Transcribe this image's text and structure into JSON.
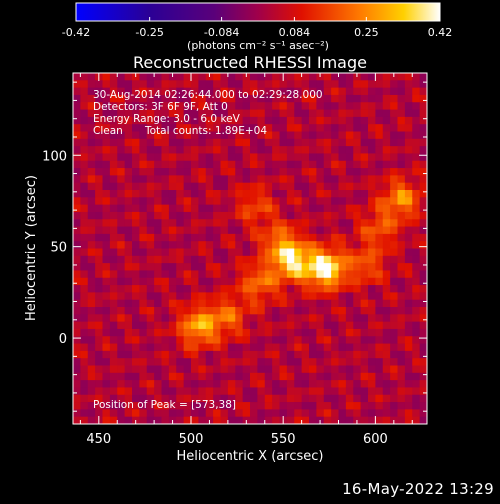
{
  "chart_data": {
    "type": "heatmap",
    "title": "Reconstructed RHESSI Image",
    "xlabel": "Heliocentric X (arcsec)",
    "ylabel": "Heliocentric Y (arcsec)",
    "xlim": [
      436,
      628
    ],
    "ylim": [
      -47,
      145
    ],
    "x_ticks": [
      450,
      500,
      550,
      600
    ],
    "y_ticks": [
      0,
      50,
      100
    ],
    "colorbar": {
      "label": "(photons cm⁻² s⁻¹ asec⁻²)",
      "range": [
        -0.42,
        0.42
      ],
      "ticks": [
        "-0.42",
        "-0.25",
        "-0.084",
        "0.084",
        "0.25",
        "0.42"
      ]
    },
    "annotations": {
      "time_range": "30-Aug-2014 02:26:44.000 to 02:29:28.000",
      "detectors": "Detectors: 3F 6F 9F, Att 0",
      "energy": "Energy Range: 3.0 - 6.0 keV",
      "clean_label": "Clean",
      "total_counts": "Total counts: 1.89E+04",
      "peak": "Position of Peak = [573,38]"
    },
    "sources": [
      {
        "x": 573,
        "y": 38,
        "intensity": 0.42
      },
      {
        "x": 555,
        "y": 42,
        "intensity": 0.33
      },
      {
        "x": 537,
        "y": 30,
        "intensity": 0.2
      },
      {
        "x": 520,
        "y": 12,
        "intensity": 0.18
      },
      {
        "x": 504,
        "y": 6,
        "intensity": 0.28
      },
      {
        "x": 548,
        "y": 53,
        "intensity": 0.18
      },
      {
        "x": 595,
        "y": 40,
        "intensity": 0.16
      },
      {
        "x": 602,
        "y": 60,
        "intensity": 0.16
      },
      {
        "x": 614,
        "y": 76,
        "intensity": 0.24
      },
      {
        "x": 535,
        "y": 72,
        "intensity": 0.14
      }
    ]
  },
  "footer": {
    "date": "16-May-2022 13:29"
  }
}
